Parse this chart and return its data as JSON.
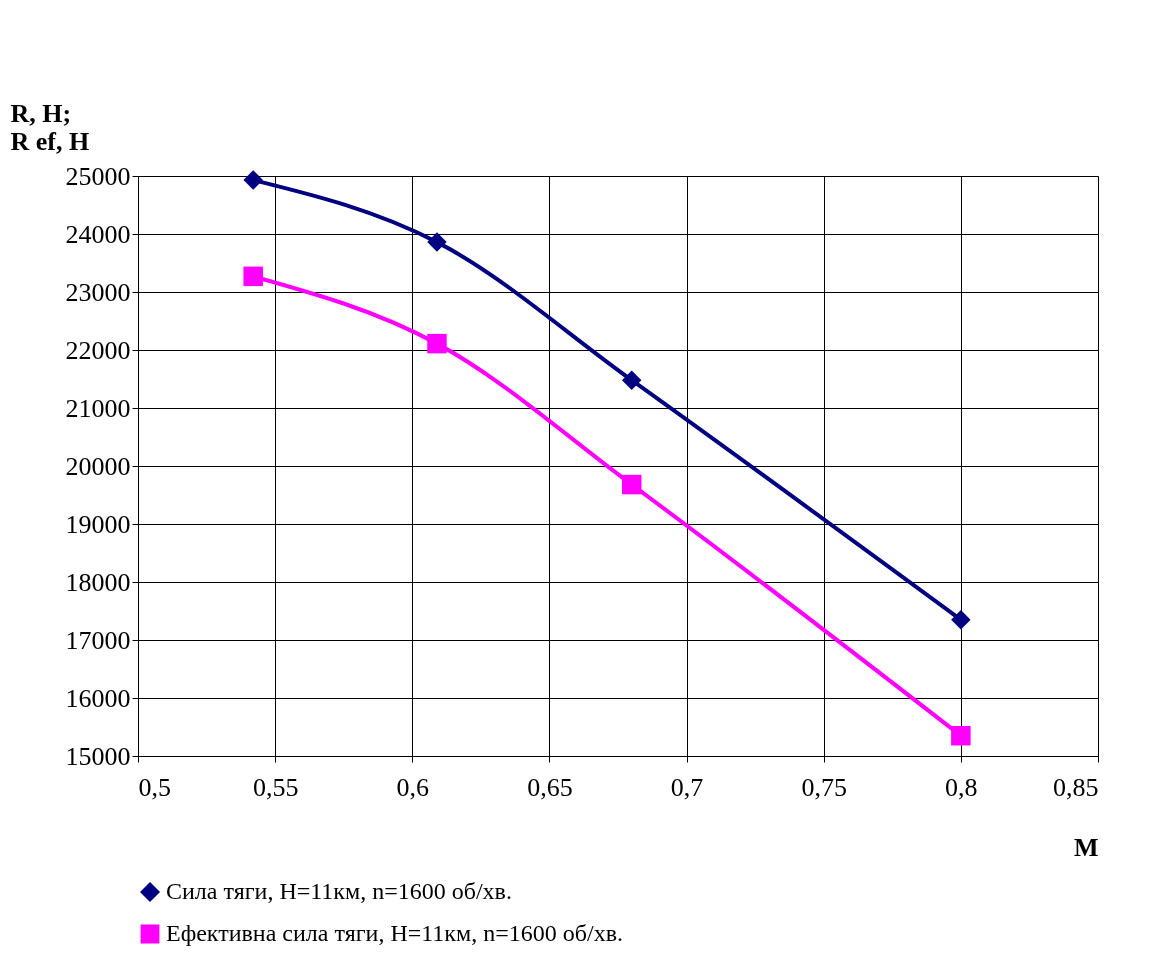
{
  "chart_data": {
    "type": "line",
    "ylabel": "R, H;\nR ef, H",
    "xlabel": "M",
    "x": [
      0.542,
      0.609,
      0.68,
      0.8
    ],
    "series": [
      {
        "name": "Сила тяги, Н=11км, n=1600 об/хв.",
        "color": "#000080",
        "marker": "diamond",
        "values": [
          24930,
          23860,
          21480,
          17350
        ]
      },
      {
        "name": "Ефективна сила тяги, Н=11км, n=1600 об/хв.",
        "color": "#ff00ff",
        "marker": "square",
        "values": [
          23270,
          22110,
          19680,
          15350
        ]
      }
    ],
    "xlim": [
      0.5,
      0.85
    ],
    "xticks": [
      {
        "value": 0.5,
        "label": "0,5"
      },
      {
        "value": 0.55,
        "label": "0,55"
      },
      {
        "value": 0.6,
        "label": "0,6"
      },
      {
        "value": 0.65,
        "label": "0,65"
      },
      {
        "value": 0.7,
        "label": "0,7"
      },
      {
        "value": 0.75,
        "label": "0,75"
      },
      {
        "value": 0.8,
        "label": "0,8"
      },
      {
        "value": 0.85,
        "label": "0,85"
      }
    ],
    "ylim": [
      15000,
      25000
    ],
    "yticks": [
      15000,
      16000,
      17000,
      18000,
      19000,
      20000,
      21000,
      22000,
      23000,
      24000,
      25000
    ],
    "grid": true,
    "legend": "bottom",
    "line_style": "solid"
  }
}
